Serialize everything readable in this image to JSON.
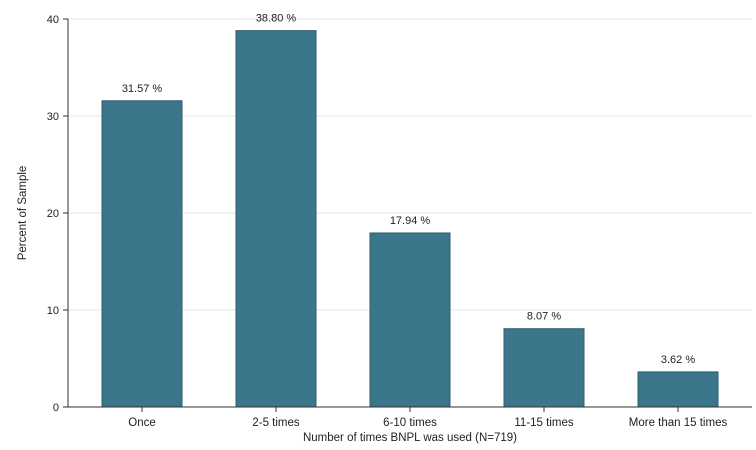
{
  "chart_data": {
    "type": "bar",
    "categories": [
      "Once",
      "2-5 times",
      "6-10 times",
      "11-15 times",
      "More than 15 times"
    ],
    "values": [
      31.57,
      38.8,
      17.94,
      8.07,
      3.62
    ],
    "data_labels": [
      "31.57 %",
      "38.80 %",
      "17.94 %",
      "8.07 %",
      "3.62 %"
    ],
    "xlabel": "Number of times BNPL was used (N=719)",
    "ylabel": "Percent of Sample",
    "ylim": [
      0,
      40
    ],
    "yticks": [
      0,
      10,
      20,
      30,
      40
    ],
    "grid": true,
    "colors": {
      "bar": "#3b768b",
      "bar_edge": "#2b5e70",
      "grid": "#e6e6e6",
      "axis": "#333333"
    }
  }
}
